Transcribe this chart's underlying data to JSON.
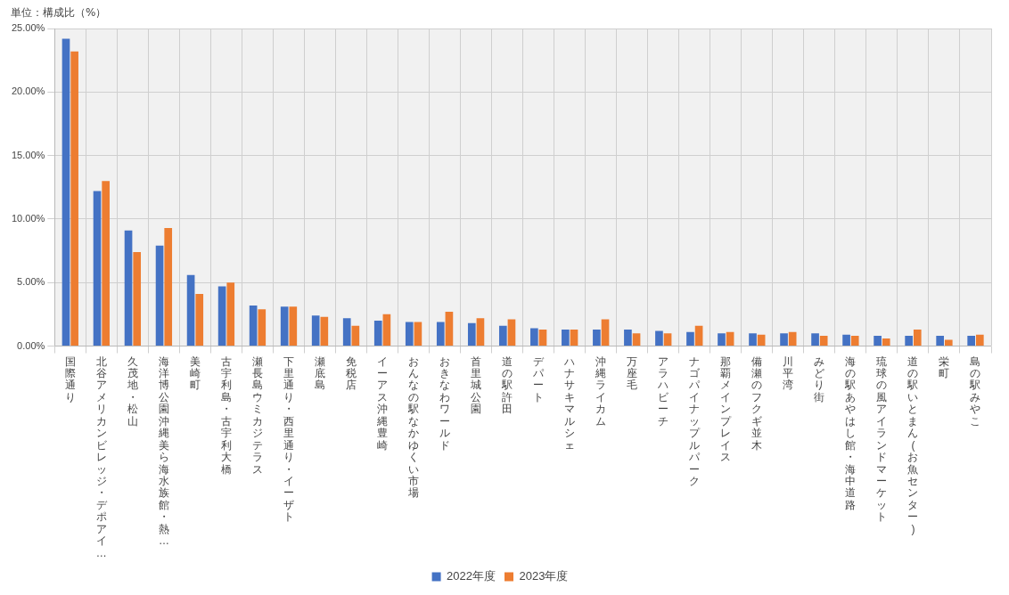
{
  "chart_data": {
    "type": "bar",
    "ylabel": "単位：構成比（%）",
    "categories": [
      "国際通り",
      "北谷アメリカンビレッジ・デポアイ…",
      "久茂地・松山",
      "海洋博公園沖縄美ら海水族館・熱…",
      "美崎町",
      "古宇利島・古宇利大橋",
      "瀬長島ウミカジテラス",
      "下里通り・西里通り・イーザト",
      "瀬底島",
      "免税店",
      "イーアス沖縄豊崎",
      "おんなの駅なかゆくい市場",
      "おきなわワールド",
      "首里城公園",
      "道の駅許田",
      "デパート",
      "ハナサキマルシェ",
      "沖縄ライカム",
      "万座毛",
      "アラハビーチ",
      "ナゴパイナップルパーク",
      "那覇メインプレイス",
      "備瀬のフクギ並木",
      "川平湾",
      "みどり街",
      "海の駅あやはし館・海中道路",
      "琉球の風アイランドマーケット",
      "道の駅いとまん(お魚センター)",
      "栄町",
      "島の駅みやこ"
    ],
    "series": [
      {
        "name": "2022年度",
        "color": "#4472c4",
        "values": [
          24.2,
          12.2,
          9.1,
          7.9,
          5.6,
          4.7,
          3.2,
          3.1,
          2.4,
          2.2,
          2.0,
          1.9,
          1.9,
          1.8,
          1.6,
          1.4,
          1.3,
          1.3,
          1.3,
          1.2,
          1.1,
          1.0,
          1.0,
          1.0,
          1.0,
          0.9,
          0.8,
          0.8,
          0.8,
          0.8
        ]
      },
      {
        "name": "2023年度",
        "color": "#ed7d31",
        "values": [
          23.2,
          13.0,
          7.4,
          9.3,
          4.1,
          5.0,
          2.9,
          3.1,
          2.3,
          1.6,
          2.5,
          1.9,
          2.7,
          2.2,
          2.1,
          1.3,
          1.3,
          2.1,
          1.0,
          1.0,
          1.6,
          1.1,
          0.9,
          1.1,
          0.8,
          0.8,
          0.6,
          1.3,
          0.5,
          0.9
        ]
      }
    ],
    "ylim": [
      0,
      25
    ],
    "yticks": [
      {
        "value": 0,
        "label": "0.00%"
      },
      {
        "value": 5,
        "label": "5.00%"
      },
      {
        "value": 10,
        "label": "10.00%"
      },
      {
        "value": 15,
        "label": "15.00%"
      },
      {
        "value": 20,
        "label": "20.00%"
      },
      {
        "value": 25,
        "label": "25.00%"
      }
    ],
    "grid": true,
    "legend": "bottom"
  }
}
